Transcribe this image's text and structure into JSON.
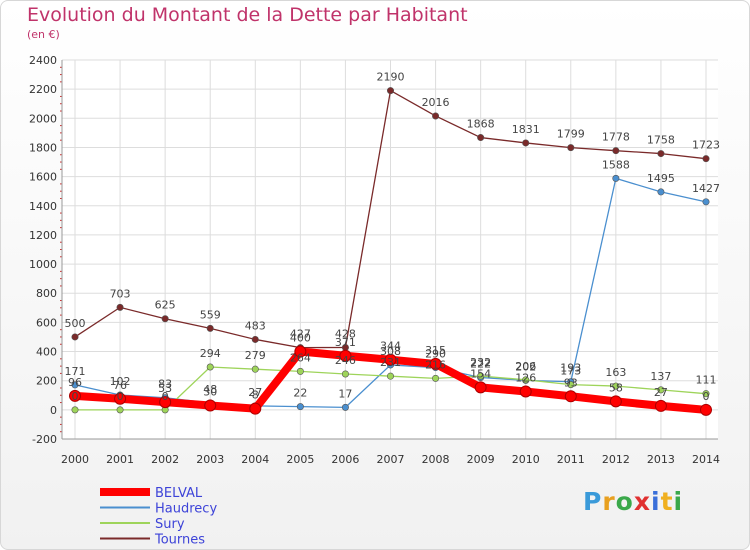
{
  "title": "Evolution du Montant de la Dette par Habitant",
  "subtitle": "(en €)",
  "logo_text": "Proxiti",
  "chart_data": {
    "type": "line",
    "title": "Evolution du Montant de la Dette par Habitant",
    "subtitle": "(en €)",
    "xlabel": "",
    "ylabel": "",
    "ylim": [
      -200,
      2400
    ],
    "yticks": [
      -200,
      0,
      200,
      400,
      600,
      800,
      1000,
      1200,
      1400,
      1600,
      1800,
      2000,
      2200,
      2400
    ],
    "categories": [
      "2000",
      "2001",
      "2002",
      "2003",
      "2004",
      "2005",
      "2006",
      "2007",
      "2008",
      "2009",
      "2010",
      "2011",
      "2012",
      "2013",
      "2014"
    ],
    "grid": true,
    "legend_position": "bottom-left",
    "series": [
      {
        "name": "BELVAL",
        "color": "#ff0000",
        "values": [
          96,
          76,
          53,
          30,
          8,
          400,
          371,
          344,
          315,
          154,
          126,
          93,
          58,
          27,
          0
        ]
      },
      {
        "name": "Haudrecy",
        "color": "#4a8fcf",
        "values": [
          171,
          102,
          83,
          48,
          27,
          22,
          17,
          308,
          290,
          222,
          202,
          193,
          1588,
          1495,
          1427
        ]
      },
      {
        "name": "Sury",
        "color": "#9ed45a",
        "values": [
          0,
          0,
          0,
          294,
          279,
          264,
          246,
          231,
          216,
          232,
          206,
          173,
          163,
          137,
          111
        ]
      },
      {
        "name": "Tournes",
        "color": "#7a2a2a",
        "values": [
          500,
          703,
          625,
          559,
          483,
          427,
          428,
          2190,
          2016,
          1868,
          1831,
          1799,
          1778,
          1758,
          1723
        ]
      }
    ]
  }
}
